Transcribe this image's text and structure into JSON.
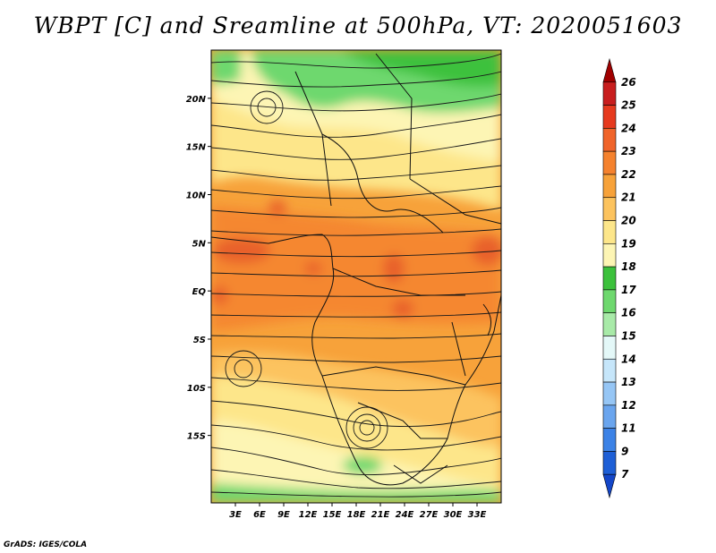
{
  "title": "WBPT [C] and Sreamline at 500hPa, VT: 2020051603",
  "credit": "GrADS: IGES/COLA",
  "map": {
    "lon_range": [
      0,
      36
    ],
    "lat_range": [
      -22,
      25
    ],
    "x_ticks": [
      "3E",
      "6E",
      "9E",
      "12E",
      "15E",
      "18E",
      "21E",
      "24E",
      "27E",
      "30E",
      "33E"
    ],
    "x_tick_values": [
      3,
      6,
      9,
      12,
      15,
      18,
      21,
      24,
      27,
      30,
      33
    ],
    "y_ticks": [
      "20N",
      "15N",
      "10N",
      "5N",
      "EQ",
      "5S",
      "10S",
      "15S"
    ],
    "y_tick_values": [
      20,
      15,
      10,
      5,
      0,
      -5,
      -10,
      -15
    ],
    "fill_colors": {
      "green_dark": "#3cc13c",
      "green_mid": "#6ed86e",
      "pale_yellow": "#fdf5b4",
      "yellow": "#fde68a",
      "light_orange": "#fcc35e",
      "orange": "#f7a23a",
      "dark_orange": "#f07f2a",
      "red_orange": "#e8602a"
    }
  },
  "colorbar": {
    "labels": [
      "26",
      "25",
      "24",
      "23",
      "22",
      "21",
      "20",
      "19",
      "18",
      "17",
      "16",
      "15",
      "14",
      "13",
      "12",
      "11",
      "9",
      "7"
    ],
    "colors": [
      "#a00000",
      "#c81e1e",
      "#e63a1e",
      "#f0642a",
      "#f5822e",
      "#f7a23a",
      "#fcc35e",
      "#fde68a",
      "#fdf5b4",
      "#3cc13c",
      "#6ed86e",
      "#a8eaa8",
      "#e4f8f8",
      "#c6e6fa",
      "#96c6f5",
      "#6aa5ee",
      "#3c82e6",
      "#1e5fd6",
      "#1446c8"
    ]
  }
}
